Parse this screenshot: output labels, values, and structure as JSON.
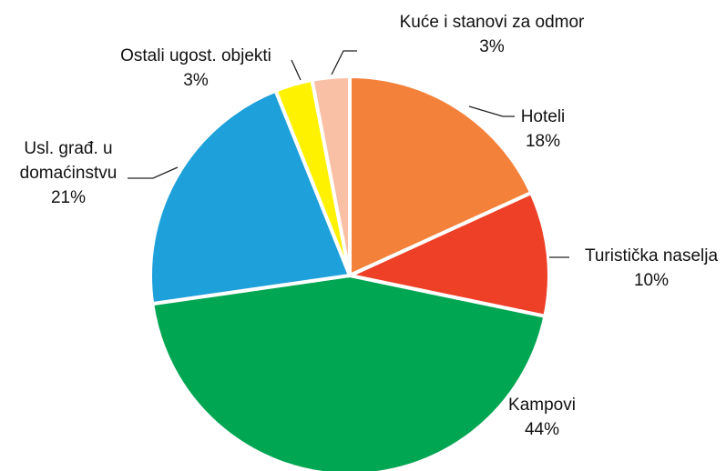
{
  "chart_data": {
    "type": "pie",
    "categories": [
      "Hoteli",
      "Turistička naselja",
      "Kampovi",
      "Usl. građ. u domaćinstvu",
      "Ostali ugost. objekti",
      "Kuće i stanovi za odmor"
    ],
    "values": [
      18,
      10,
      44,
      21,
      3,
      3
    ],
    "value_labels": [
      "18%",
      "10%",
      "44%",
      "21%",
      "3%",
      "3%"
    ],
    "colors": [
      "#f4813a",
      "#ee4027",
      "#00a651",
      "#1ea0db",
      "#fff200",
      "#f9c0a5"
    ]
  }
}
